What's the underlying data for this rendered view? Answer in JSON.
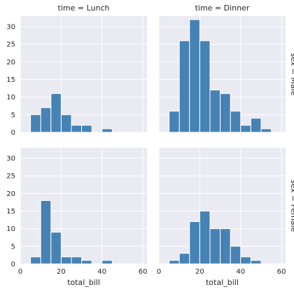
{
  "chart_data": {
    "type": "bar",
    "layout": "facet-grid",
    "xlabel": "total_bill",
    "ylabel": "",
    "xlim": [
      0,
      62
    ],
    "ylim": [
      0,
      33
    ],
    "x_ticks": [
      0,
      20,
      40,
      60
    ],
    "y_ticks": [
      0,
      5,
      10,
      15,
      20,
      25,
      30
    ],
    "grid": true,
    "bar_color": "#4682b4",
    "background": "#eaeaf2",
    "bin_edges": [
      5,
      10,
      15,
      20,
      25,
      30,
      35,
      40,
      45,
      50,
      55,
      60
    ],
    "row_titles": [
      "sex = Male",
      "sex = Female"
    ],
    "col_titles": [
      "time = Lunch",
      "time = Dinner"
    ],
    "panels": [
      {
        "time": "Lunch",
        "sex": "Male",
        "values": [
          5,
          7,
          11,
          5,
          2,
          2,
          0,
          1,
          0,
          0,
          0
        ]
      },
      {
        "time": "Dinner",
        "sex": "Male",
        "values": [
          6,
          26,
          32,
          26,
          12,
          11,
          6,
          2,
          4,
          1,
          0
        ]
      },
      {
        "time": "Lunch",
        "sex": "Female",
        "values": [
          2,
          18,
          9,
          2,
          2,
          1,
          0,
          1,
          0,
          0,
          0
        ]
      },
      {
        "time": "Dinner",
        "sex": "Female",
        "values": [
          1,
          3,
          12,
          15,
          10,
          10,
          5,
          2,
          1,
          0,
          0
        ]
      }
    ]
  }
}
